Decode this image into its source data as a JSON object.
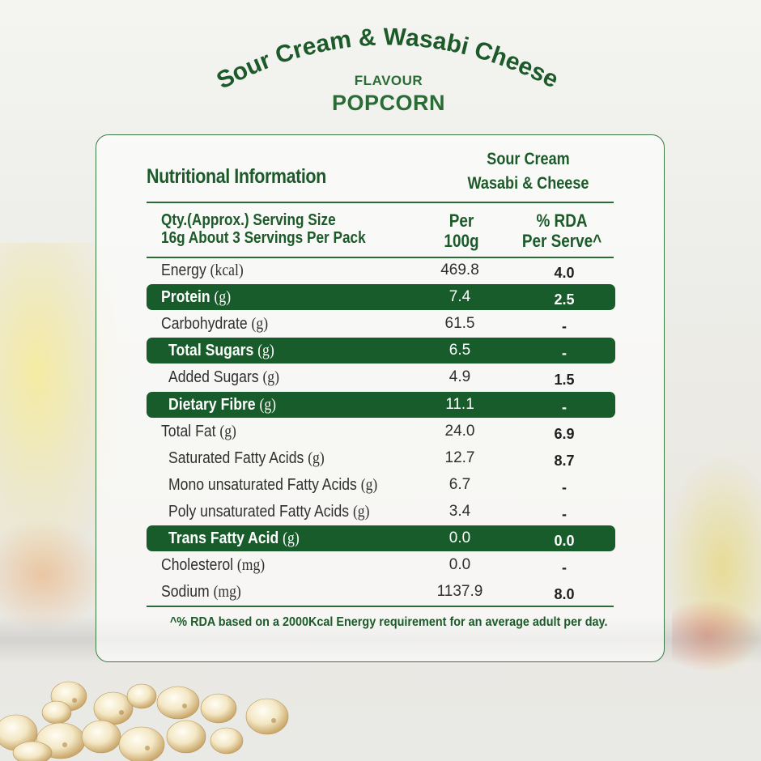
{
  "brand_line": "Sour Cream & Wasabi Cheese",
  "flavour_label": "FLAVOUR",
  "product_name": "POPCORN",
  "panel": {
    "title": "Nutritional Information",
    "variant_line1": "Sour Cream",
    "variant_line2": "Wasabi & Cheese",
    "header": {
      "serving_line1": "Qty.(Approx.) Serving Size",
      "serving_line2": "16g About 3 Servings Per Pack",
      "per_line1": "Per",
      "per_line2": "100g",
      "rda_line1": "% RDA",
      "rda_line2": "Per Serve^"
    },
    "rows": [
      {
        "name": "Energy",
        "unit": "(kcal)",
        "per100g": "469.8",
        "rda": "4.0",
        "highlight": false,
        "indent": false
      },
      {
        "name": "Protein",
        "unit": "(g)",
        "per100g": "7.4",
        "rda": "2.5",
        "highlight": true,
        "indent": false
      },
      {
        "name": "Carbohydrate",
        "unit": "(g)",
        "per100g": "61.5",
        "rda": "-",
        "highlight": false,
        "indent": false
      },
      {
        "name": "Total Sugars",
        "unit": "(g)",
        "per100g": "6.5",
        "rda": "-",
        "highlight": true,
        "indent": true
      },
      {
        "name": "Added Sugars",
        "unit": "(g)",
        "per100g": "4.9",
        "rda": "1.5",
        "highlight": false,
        "indent": true
      },
      {
        "name": "Dietary Fibre",
        "unit": "(g)",
        "per100g": "11.1",
        "rda": "-",
        "highlight": true,
        "indent": true
      },
      {
        "name": "Total Fat",
        "unit": "(g)",
        "per100g": "24.0",
        "rda": "6.9",
        "highlight": false,
        "indent": false
      },
      {
        "name": "Saturated Fatty Acids",
        "unit": "(g)",
        "per100g": "12.7",
        "rda": "8.7",
        "highlight": false,
        "indent": true
      },
      {
        "name": "Mono unsaturated Fatty Acids",
        "unit": "(g)",
        "per100g": "6.7",
        "rda": "-",
        "highlight": false,
        "indent": true
      },
      {
        "name": "Poly unsaturated Fatty Acids",
        "unit": "(g)",
        "per100g": "3.4",
        "rda": "-",
        "highlight": false,
        "indent": true
      },
      {
        "name": "Trans Fatty Acid",
        "unit": "(g)",
        "per100g": "0.0",
        "rda": "0.0",
        "highlight": true,
        "indent": true
      },
      {
        "name": "Cholesterol",
        "unit": "(mg)",
        "per100g": "0.0",
        "rda": "-",
        "highlight": false,
        "indent": false
      },
      {
        "name": "Sodium",
        "unit": "(mg)",
        "per100g": "1137.9",
        "rda": "8.0",
        "highlight": false,
        "indent": false
      }
    ],
    "footnote": "^% RDA based on a 2000Kcal Energy requirement for an average adult per day."
  },
  "colors": {
    "brand_green": "#1c5a2a",
    "highlight_row": "#195c2b"
  }
}
